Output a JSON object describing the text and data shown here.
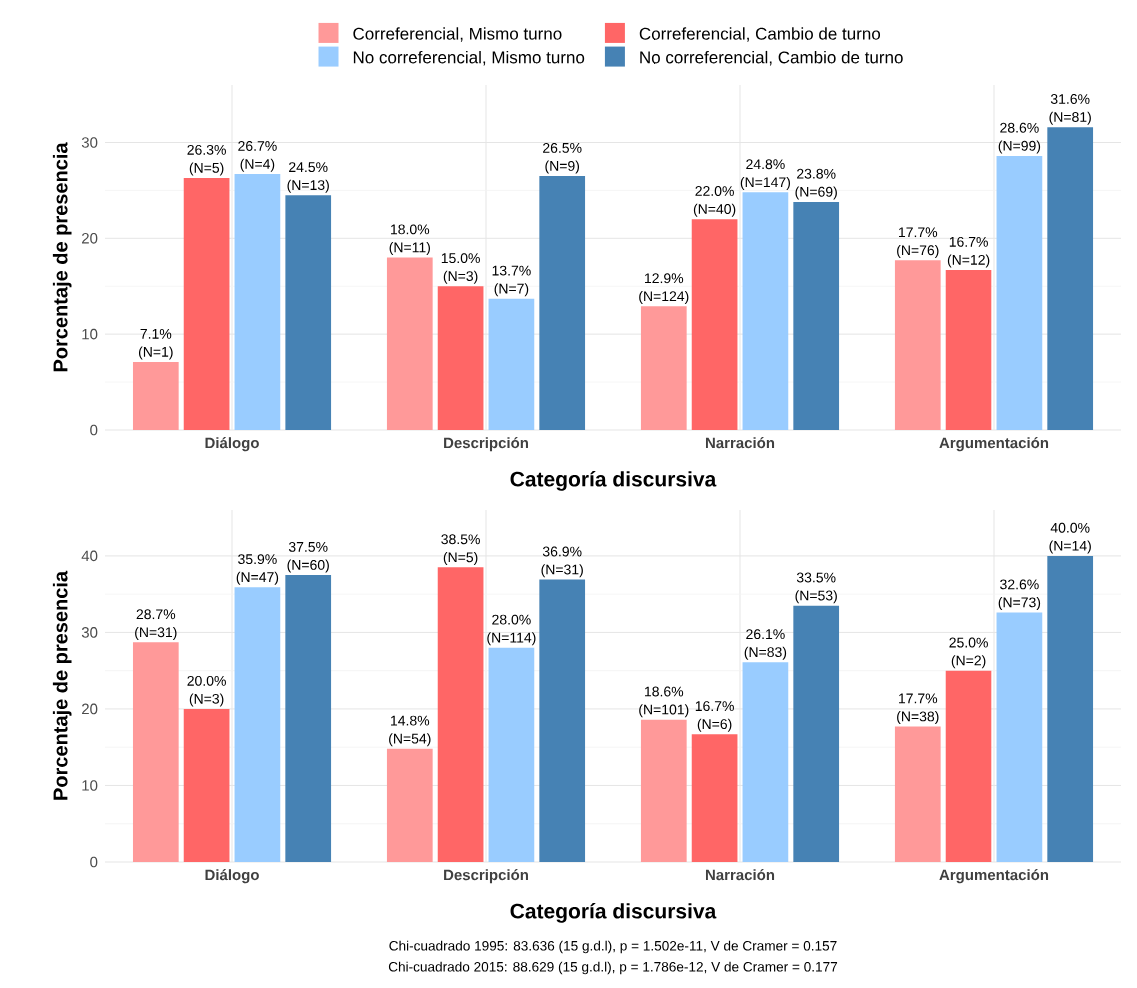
{
  "chart_data": [
    {
      "type": "bar",
      "categories": [
        "Diálogo",
        "Descripción",
        "Narración",
        "Argumentación"
      ],
      "xlabel": "Categoría discursiva",
      "ylabel": "Porcentaje de presencia",
      "ylim": [
        0,
        36
      ],
      "yticks": [
        0,
        10,
        20,
        30
      ],
      "grid": true,
      "legend": "top",
      "series": [
        {
          "name": "Correferencial, Mismo turno",
          "color": "#ff9999",
          "values": [
            7.1,
            18.0,
            12.9,
            17.7
          ],
          "value_labels": [
            "7.1% (N=1)",
            "18.0% (N=11)",
            "12.9% (N=124)",
            "17.7% (N=76)"
          ]
        },
        {
          "name": "Correferencial, Cambio de turno",
          "color": "#ff6666",
          "values": [
            26.3,
            15.0,
            22.0,
            16.7
          ],
          "value_labels": [
            "26.3% (N=5)",
            "15.0% (N=3)",
            "22.0% (N=40)",
            "16.7% (N=12)"
          ]
        },
        {
          "name": "No correferencial, Mismo turno",
          "color": "#99ccff",
          "values": [
            26.7,
            13.7,
            24.8,
            28.6
          ],
          "value_labels": [
            "26.7% (N=4)",
            "13.7% (N=7)",
            "24.8% (N=147)",
            "28.6% (N=99)"
          ]
        },
        {
          "name": "No correferencial, Cambio de turno",
          "color": "#4682b4",
          "values": [
            24.5,
            26.5,
            23.8,
            31.6
          ],
          "value_labels": [
            "24.5% (N=13)",
            "26.5% (N=9)",
            "23.8% (N=69)",
            "31.6% (N=81)"
          ]
        }
      ]
    },
    {
      "type": "bar",
      "categories": [
        "Diálogo",
        "Descripción",
        "Narración",
        "Argumentación"
      ],
      "xlabel": "Categoría discursiva",
      "ylabel": "Porcentaje de presencia",
      "ylim": [
        0,
        46
      ],
      "yticks": [
        0,
        10,
        20,
        30,
        40
      ],
      "grid": true,
      "annotations": [
        "Chi-cuadrado 1995: 83.636 (15 g.d.l), p = 1.502e-11, V de Cramer = 0.157",
        "Chi-cuadrado 2015: 88.629 (15 g.d.l), p = 1.786e-12, V de Cramer = 0.177"
      ],
      "series": [
        {
          "color": "#ff9999",
          "values": [
            28.7,
            14.8,
            18.6,
            17.7
          ],
          "value_labels": [
            "28.7% (N=31)",
            "14.8% (N=54)",
            "18.6% (N=101)",
            "17.7% (N=38)"
          ]
        },
        {
          "color": "#ff6666",
          "values": [
            20.0,
            38.5,
            16.7,
            25.0
          ],
          "value_labels": [
            "20.0% (N=3)",
            "38.5% (N=5)",
            "16.7% (N=6)",
            "25.0% (N=2)"
          ]
        },
        {
          "color": "#99ccff",
          "values": [
            35.9,
            28.0,
            26.1,
            32.6
          ],
          "value_labels": [
            "35.9% (N=47)",
            "28.0% (N=114)",
            "26.1% (N=83)",
            "32.6% (N=73)"
          ]
        },
        {
          "color": "#4682b4",
          "values": [
            37.5,
            36.9,
            33.5,
            40.0
          ],
          "value_labels": [
            "37.5% (N=60)",
            "36.9% (N=31)",
            "33.5% (N=53)",
            "40.0% (N=14)"
          ]
        }
      ]
    }
  ]
}
